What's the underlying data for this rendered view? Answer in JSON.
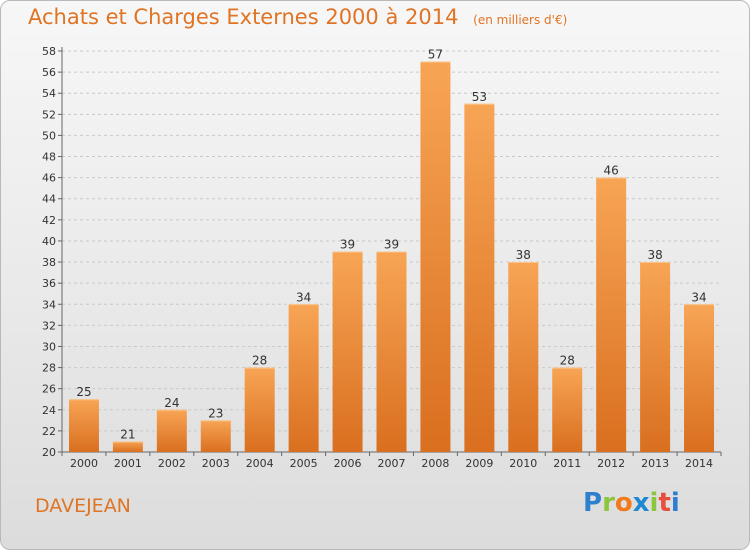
{
  "header": {
    "title": "Achats et Charges Externes 2000 à 2014",
    "unit": "(en milliers d'€)"
  },
  "footer": {
    "commune": "DAVEJEAN",
    "logo_letters": [
      "P",
      "r",
      "o",
      "x",
      "i",
      "t",
      "i"
    ]
  },
  "colors": {
    "title": "#e07424",
    "bar_light": "#f7a555",
    "bar_dark": "#d96f1f",
    "grid": "#c9c9c9"
  },
  "chart_data": {
    "type": "bar",
    "title": "Achats et Charges Externes 2000 à 2014",
    "xlabel": "",
    "ylabel": "",
    "categories": [
      "2000",
      "2001",
      "2002",
      "2003",
      "2004",
      "2005",
      "2006",
      "2007",
      "2008",
      "2009",
      "2010",
      "2011",
      "2012",
      "2013",
      "2014"
    ],
    "values": [
      25,
      21,
      24,
      23,
      28,
      34,
      39,
      39,
      57,
      53,
      38,
      28,
      46,
      38,
      34
    ],
    "ylim": [
      20,
      58
    ],
    "yticks": [
      20,
      22,
      24,
      26,
      28,
      30,
      32,
      34,
      36,
      38,
      40,
      42,
      44,
      46,
      48,
      50,
      52,
      54,
      56,
      58
    ],
    "grid": true,
    "data_labels": true
  }
}
